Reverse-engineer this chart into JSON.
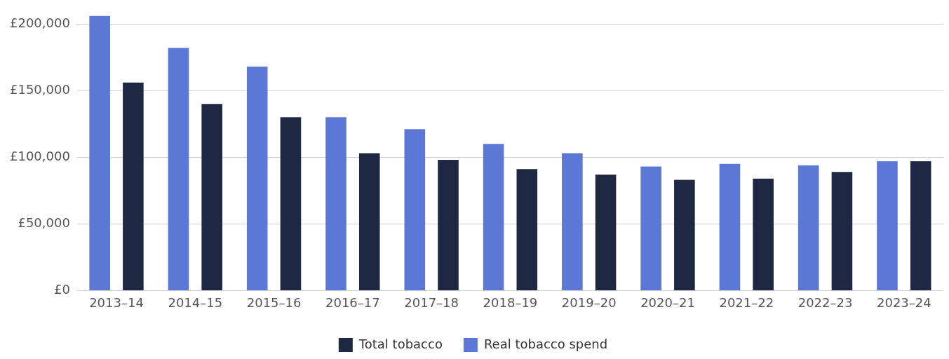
{
  "chart_data": {
    "type": "bar",
    "categories": [
      "2013–14",
      "2014–15",
      "2015–16",
      "2016–17",
      "2017–18",
      "2018–19",
      "2019–20",
      "2020–21",
      "2021–22",
      "2022–23",
      "2023–24"
    ],
    "series": [
      {
        "name": "Real tobacco spend",
        "color": "#5b78d6",
        "values": [
          206000,
          182000,
          168000,
          130000,
          121000,
          110000,
          103000,
          93000,
          95000,
          94000,
          97000
        ]
      },
      {
        "name": "Total tobacco",
        "color": "#1e2842",
        "values": [
          156000,
          140000,
          130000,
          103000,
          98000,
          91000,
          87000,
          83000,
          84000,
          89000,
          97000
        ]
      }
    ],
    "ylim": [
      0,
      207000
    ],
    "yticks": [
      {
        "value": 0,
        "label": "£0"
      },
      {
        "value": 50000,
        "label": "£50,000"
      },
      {
        "value": 100000,
        "label": "£100,000"
      },
      {
        "value": 150000,
        "label": "£150,000"
      },
      {
        "value": 200000,
        "label": "£200,000"
      }
    ],
    "grid": "y",
    "legend": "bottom"
  }
}
